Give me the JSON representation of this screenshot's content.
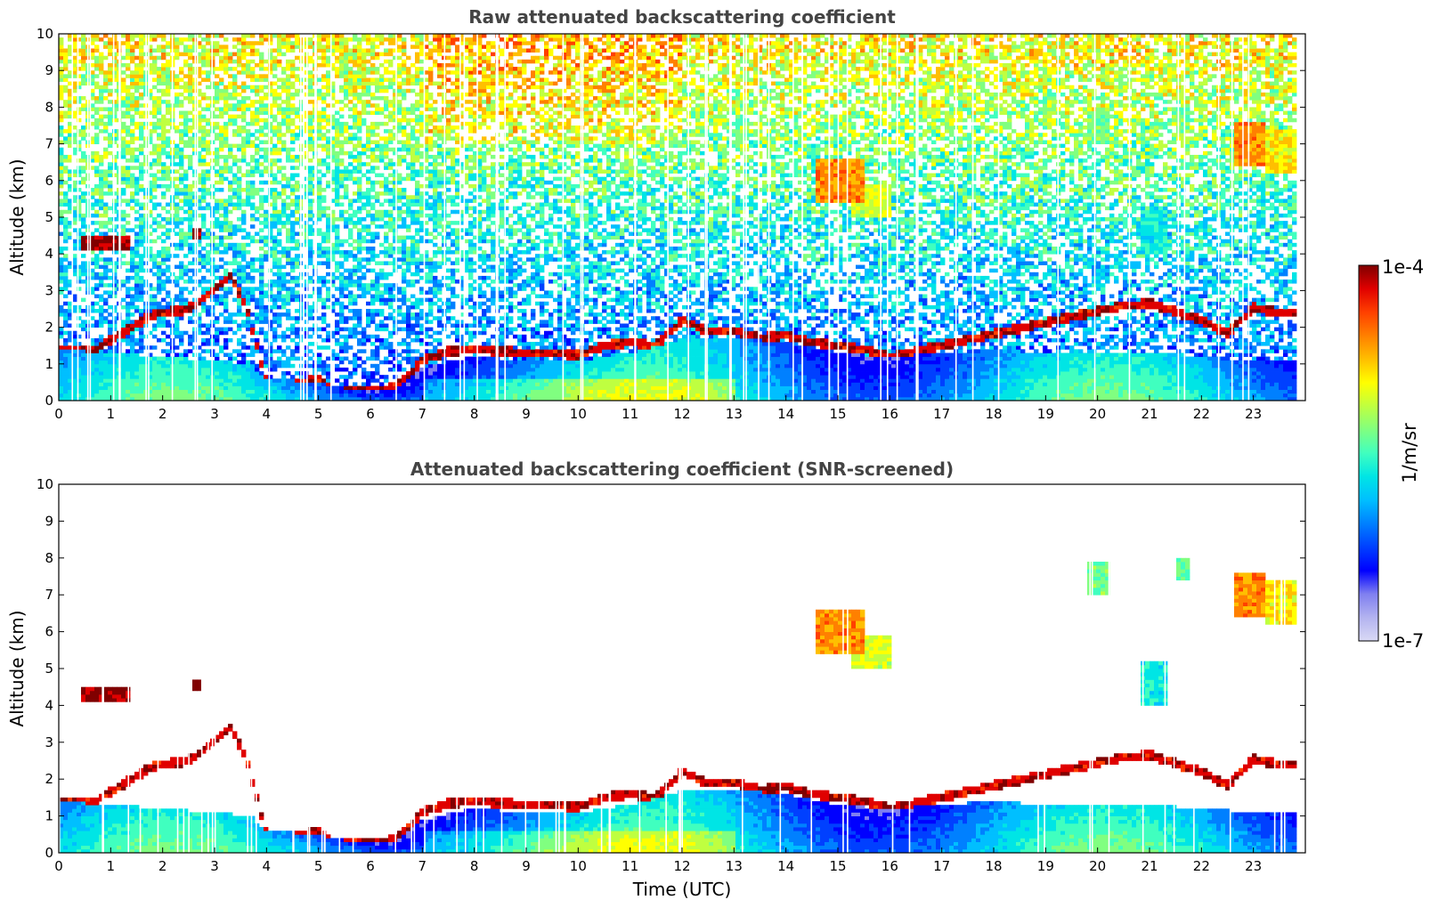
{
  "chart_data": [
    {
      "type": "heatmap",
      "title": "Raw attenuated backscattering coefficient",
      "xlabel": "",
      "ylabel": "Altitude (km)",
      "xlim": [
        0,
        24
      ],
      "ylim": [
        0,
        10
      ],
      "xticks": [
        "0",
        "1",
        "2",
        "3",
        "4",
        "5",
        "6",
        "7",
        "8",
        "9",
        "10",
        "11",
        "12",
        "13",
        "14",
        "15",
        "16",
        "17",
        "18",
        "19",
        "20",
        "21",
        "22",
        "23"
      ],
      "yticks": [
        "0",
        "1",
        "2",
        "3",
        "4",
        "5",
        "6",
        "7",
        "8",
        "9",
        "10"
      ],
      "data_end_time": 23.8,
      "color_scale": "log",
      "colormap": "jet",
      "noise_visible": true,
      "layers": [
        {
          "name": "boundary-layer",
          "x": [
            0,
            1,
            2,
            3,
            3.7,
            4,
            4.5,
            5,
            5.5,
            6,
            6.5,
            7,
            8,
            9,
            10,
            11,
            12,
            13,
            14,
            15,
            16,
            17,
            18,
            19,
            20,
            21,
            22,
            23,
            23.8
          ],
          "top_km": [
            1.4,
            1.3,
            1.2,
            1.1,
            1.0,
            0.6,
            0.55,
            0.5,
            0.35,
            0.25,
            0.3,
            0.9,
            1.2,
            1.1,
            1.1,
            1.3,
            1.7,
            1.7,
            1.6,
            1.3,
            1.2,
            1.3,
            1.4,
            1.3,
            1.3,
            1.3,
            1.2,
            1.1,
            1.1
          ]
        },
        {
          "name": "cloud-top-layer",
          "x": [
            0,
            0.7,
            1.8,
            2.5,
            3.3,
            3.6,
            4.0,
            4.5,
            5.0,
            5.3,
            5.6,
            6.0,
            6.5,
            7.0,
            7.5,
            8.0,
            8.5,
            9.0,
            9.5,
            10,
            10.5,
            11,
            11.5,
            12,
            12.5,
            13,
            13.5,
            14,
            14.5,
            15.5,
            16,
            20.5,
            21,
            22,
            22.5,
            23,
            23.5
          ],
          "alt_km": [
            1.4,
            1.4,
            2.35,
            2.5,
            3.4,
            2.6,
            0.5,
            0.45,
            0.6,
            0.2,
            0.25,
            0.28,
            0.35,
            1.1,
            1.35,
            1.4,
            1.35,
            1.3,
            1.3,
            1.25,
            1.5,
            1.6,
            1.5,
            2.2,
            1.9,
            1.9,
            1.7,
            1.8,
            1.6,
            1.4,
            1.2,
            2.6,
            2.65,
            2.2,
            1.85,
            2.55,
            2.4
          ]
        },
        {
          "name": "cirrus-patches",
          "cells": [
            [
              0.4,
              1.4,
              4.3,
              0.35,
              1.0
            ],
            [
              2.6,
              2.7,
              4.55,
              0.3,
              1.0
            ],
            [
              14.6,
              15.5,
              6.0,
              1.2,
              0.8
            ],
            [
              15.3,
              16.0,
              5.4,
              0.9,
              0.65
            ],
            [
              19.8,
              20.2,
              7.4,
              0.9,
              0.55
            ],
            [
              20.8,
              21.3,
              4.6,
              1.2,
              0.45
            ],
            [
              21.5,
              21.8,
              7.7,
              0.6,
              0.55
            ],
            [
              22.6,
              23.2,
              7.0,
              1.1,
              0.8
            ],
            [
              23.2,
              23.8,
              6.8,
              1.2,
              0.7
            ]
          ]
        }
      ]
    },
    {
      "type": "heatmap",
      "title": "Attenuated backscattering coefficient (SNR-screened)",
      "xlabel": "Time (UTC)",
      "ylabel": "Altitude (km)",
      "xlim": [
        0,
        24
      ],
      "ylim": [
        0,
        10
      ],
      "xticks": [
        "0",
        "1",
        "2",
        "3",
        "4",
        "5",
        "6",
        "7",
        "8",
        "9",
        "10",
        "11",
        "12",
        "13",
        "14",
        "15",
        "16",
        "17",
        "18",
        "19",
        "20",
        "21",
        "22",
        "23"
      ],
      "yticks": [
        "0",
        "1",
        "2",
        "3",
        "4",
        "5",
        "6",
        "7",
        "8",
        "9",
        "10"
      ],
      "data_end_time": 23.8,
      "color_scale": "log",
      "colormap": "jet",
      "noise_visible": false
    }
  ],
  "colorbar": {
    "max_label": "1e-4",
    "min_label": "1e-7",
    "unit_label": "1/m/sr",
    "colors": [
      "#d9d9f5",
      "#b3b3f0",
      "#7f7ff0",
      "#0000ff",
      "#0040ff",
      "#0080ff",
      "#00bfff",
      "#00e5e5",
      "#40ffbf",
      "#80ff80",
      "#bfff40",
      "#ffff00",
      "#ffbf00",
      "#ff8000",
      "#ff4000",
      "#e00000",
      "#800000"
    ]
  }
}
